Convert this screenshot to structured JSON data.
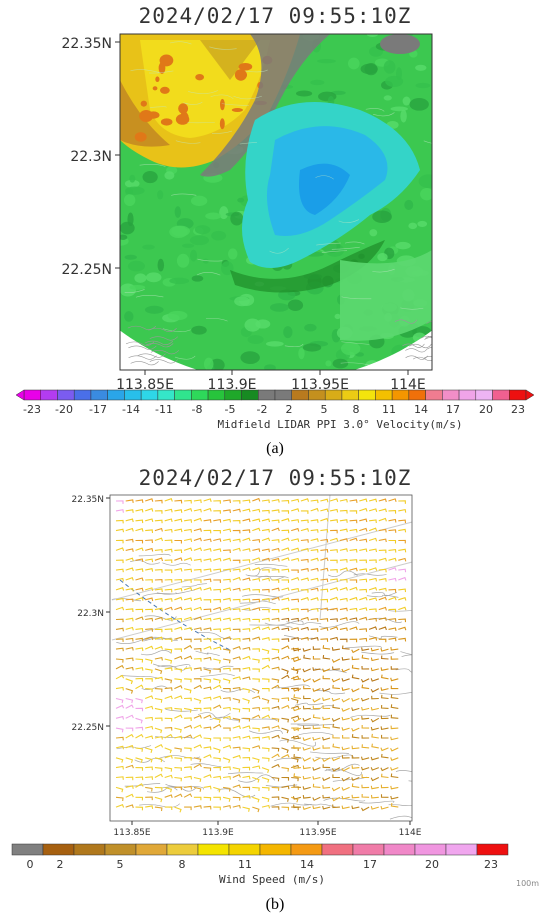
{
  "chart_data": [
    {
      "type": "heatmap",
      "title": "2024/02/17  09:55:10Z",
      "panel_label": "(a)",
      "x_ticks": [
        "113.85E",
        "113.9E",
        "113.95E",
        "114E"
      ],
      "y_ticks": [
        "22.35N",
        "22.3N",
        "22.25N"
      ],
      "colorbar_label": "Midfield LIDAR PPI 3.0° Velocity(m/s)",
      "colorbar_ticks": [
        "-23",
        "-20",
        "-17",
        "-14",
        "-11",
        "-8",
        "-5",
        "-2",
        "2",
        "5",
        "8",
        "11",
        "14",
        "17",
        "20",
        "23"
      ],
      "colorbar_colors": [
        "#e800e8",
        "#b33cf0",
        "#7b5cf0",
        "#4a6fe8",
        "#3a8be0",
        "#2aa5e8",
        "#28bfea",
        "#2ed7e8",
        "#35e6c8",
        "#30e48e",
        "#2ed85a",
        "#27c43c",
        "#1fa82a",
        "#178a22",
        "#7a7a7a",
        "#7a7a7a",
        "#b87a1e",
        "#c4901e",
        "#d8ac18",
        "#eccc14",
        "#f4e40c",
        "#f4c000",
        "#f49600",
        "#f0700a",
        "#f07c90",
        "#f28ec8",
        "#f0a4e8",
        "#eeb4f4",
        "#f06090",
        "#ee1010"
      ],
      "features": [
        {
          "name": "receding-winds-northwest",
          "color": "#e8c800"
        },
        {
          "name": "approaching-core-centre",
          "color": "#2ed0e6"
        },
        {
          "name": "weak-flow-zone",
          "color": "#8a8a8a"
        }
      ]
    },
    {
      "type": "heatmap",
      "title": "2024/02/17  09:55:10Z",
      "panel_label": "(b)",
      "x_ticks": [
        "113.85E",
        "113.9E",
        "113.95E",
        "114E"
      ],
      "y_ticks": [
        "22.35N",
        "22.3N",
        "22.25N"
      ],
      "colorbar_label": "Wind Speed (m/s)",
      "colorbar_ticks": [
        "0",
        "2",
        "5",
        "8",
        "11",
        "14",
        "17",
        "20",
        "23"
      ],
      "colorbar_colors": [
        "#808080",
        "#a66010",
        "#b0781c",
        "#c0902a",
        "#e0a838",
        "#eccc3c",
        "#f4e400",
        "#f4d400",
        "#f4b600",
        "#f49a14",
        "#f07080",
        "#f07ca8",
        "#f088c8",
        "#f096e0",
        "#f0a6ee",
        "#ee1010"
      ],
      "watermark": "100m"
    }
  ]
}
